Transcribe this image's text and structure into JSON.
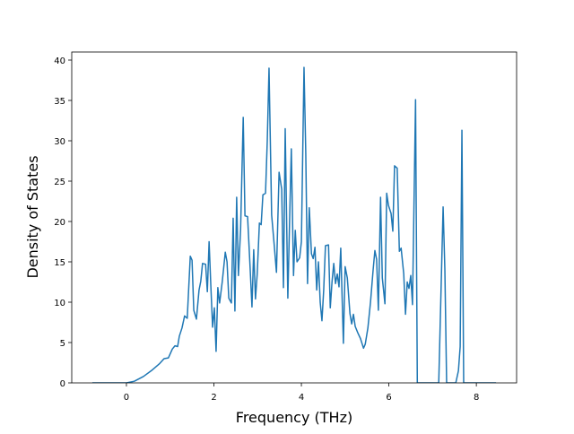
{
  "chart_data": {
    "type": "line",
    "xlabel": "Frequency (THz)",
    "ylabel": "Density of States",
    "xlim": [
      -1.25,
      8.92
    ],
    "xticks": [
      0,
      2,
      4,
      6,
      8
    ],
    "ylim": [
      0,
      41
    ],
    "yticks": [
      0,
      5,
      10,
      15,
      20,
      25,
      30,
      35,
      40
    ],
    "series": [
      {
        "color": "#1f77b4",
        "x": [
          -0.78,
          0,
          0.18,
          0.39,
          0.59,
          0.76,
          0.86,
          0.96,
          1.05,
          1.11,
          1.17,
          1.21,
          1.27,
          1.33,
          1.39,
          1.46,
          1.5,
          1.54,
          1.6,
          1.66,
          1.7,
          1.74,
          1.81,
          1.85,
          1.89,
          1.93,
          1.97,
          2.01,
          2.05,
          2.09,
          2.13,
          2.19,
          2.26,
          2.3,
          2.34,
          2.4,
          2.44,
          2.48,
          2.52,
          2.56,
          2.61,
          2.67,
          2.71,
          2.77,
          2.83,
          2.87,
          2.91,
          2.95,
          2.99,
          3.04,
          3.08,
          3.12,
          3.18,
          3.22,
          3.26,
          3.32,
          3.38,
          3.43,
          3.49,
          3.55,
          3.59,
          3.63,
          3.69,
          3.73,
          3.77,
          3.82,
          3.86,
          3.9,
          3.96,
          4.0,
          4.06,
          4.1,
          4.14,
          4.18,
          4.23,
          4.27,
          4.31,
          4.35,
          4.39,
          4.43,
          4.47,
          4.51,
          4.55,
          4.62,
          4.66,
          4.7,
          4.74,
          4.78,
          4.82,
          4.86,
          4.9,
          4.96,
          5.0,
          5.05,
          5.11,
          5.15,
          5.19,
          5.23,
          5.29,
          5.35,
          5.42,
          5.46,
          5.52,
          5.58,
          5.64,
          5.68,
          5.72,
          5.76,
          5.81,
          5.85,
          5.91,
          5.95,
          5.99,
          6.05,
          6.09,
          6.13,
          6.19,
          6.24,
          6.28,
          6.34,
          6.38,
          6.42,
          6.46,
          6.5,
          6.54,
          6.61,
          6.65,
          7.14,
          7.24,
          7.28,
          7.32,
          7.53,
          7.59,
          7.63,
          7.67,
          7.71,
          8.45
        ],
        "values": [
          0,
          0,
          0.2,
          0.8,
          1.6,
          2.4,
          3.0,
          3.1,
          4.2,
          4.6,
          4.5,
          5.8,
          6.8,
          8.3,
          8.0,
          15.7,
          15.2,
          9.0,
          7.9,
          11.5,
          12.6,
          14.8,
          14.7,
          11.3,
          17.5,
          12.0,
          6.9,
          9.3,
          3.9,
          11.8,
          9.9,
          12.5,
          16.2,
          15.0,
          10.5,
          9.9,
          20.4,
          8.9,
          23.0,
          13.3,
          19.0,
          32.9,
          20.7,
          20.6,
          14.0,
          9.4,
          16.5,
          10.4,
          13.5,
          19.8,
          19.6,
          23.3,
          23.5,
          30.0,
          39.0,
          20.8,
          17.0,
          13.7,
          26.1,
          24.0,
          11.8,
          31.5,
          10.5,
          20.0,
          29.0,
          13.3,
          18.9,
          15.0,
          15.5,
          17.5,
          39.1,
          28.5,
          12.3,
          21.7,
          16.0,
          15.4,
          16.8,
          11.5,
          15.0,
          10.0,
          7.7,
          11.5,
          17.0,
          17.1,
          9.3,
          12.5,
          14.8,
          12.3,
          13.5,
          11.9,
          16.7,
          4.9,
          14.4,
          13.0,
          8.6,
          7.3,
          8.5,
          7.0,
          6.2,
          5.5,
          4.3,
          4.8,
          6.8,
          10.0,
          14.0,
          16.4,
          15.3,
          9.0,
          23.0,
          13.0,
          9.8,
          23.5,
          22.0,
          21.0,
          18.8,
          26.9,
          26.6,
          16.3,
          16.7,
          13.5,
          8.5,
          12.5,
          11.7,
          13.3,
          9.7,
          35.1,
          0,
          0,
          21.8,
          14.0,
          0,
          0,
          1.5,
          4.5,
          31.3,
          0,
          0
        ]
      }
    ]
  }
}
